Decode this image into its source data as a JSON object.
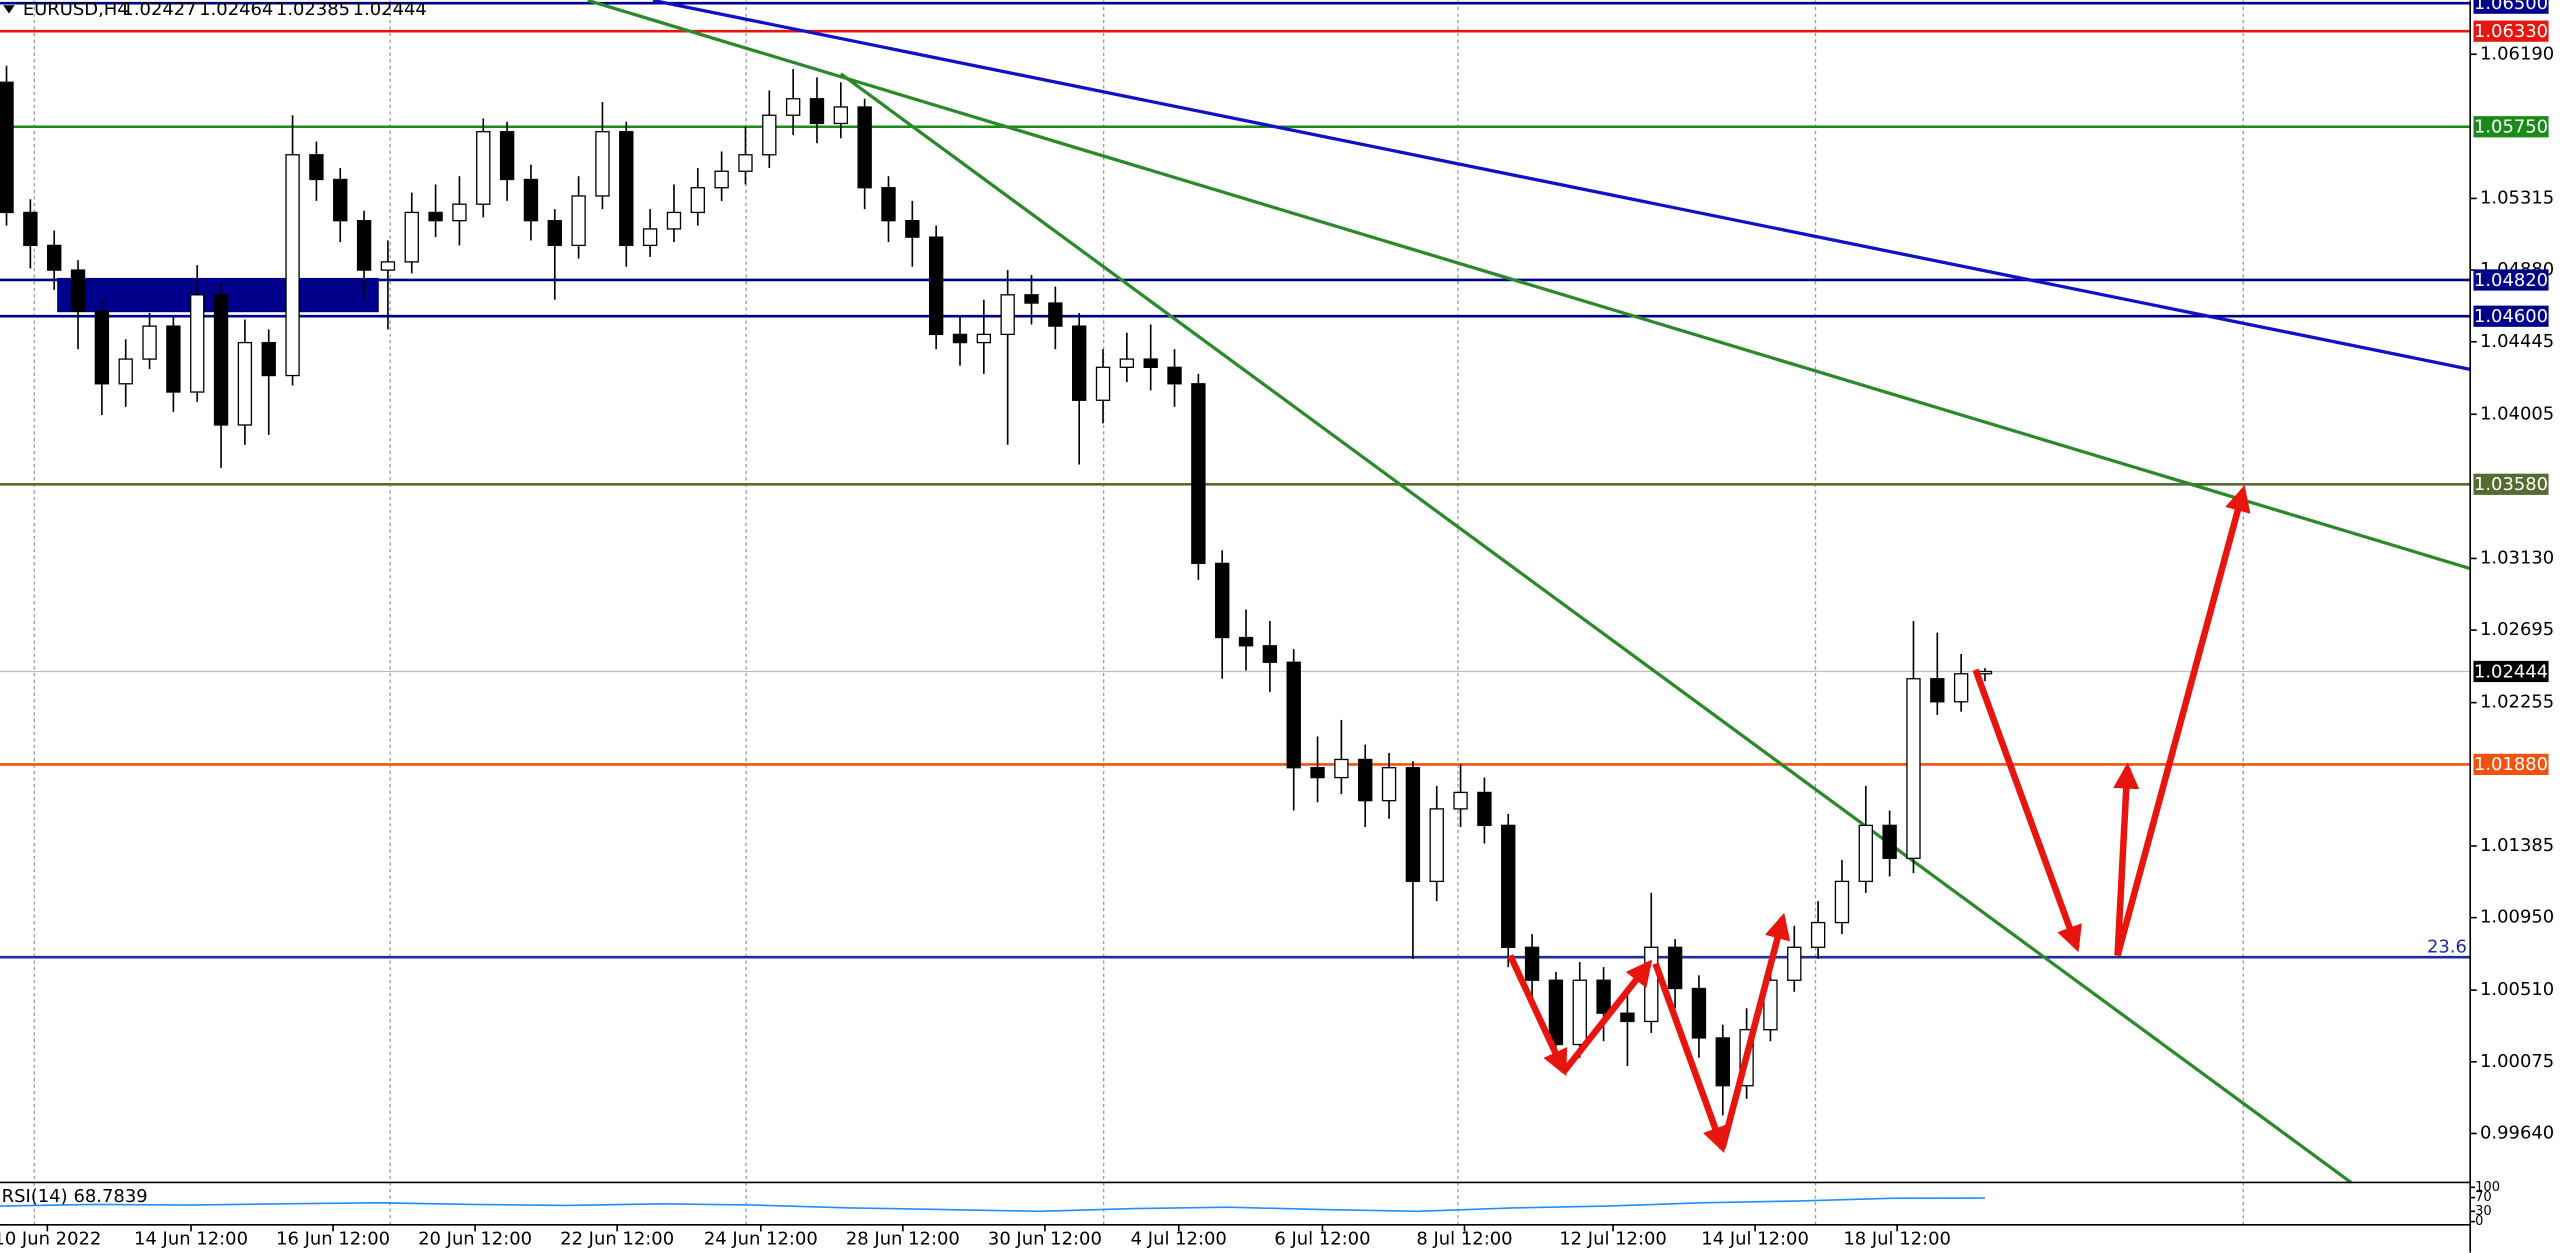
{
  "chart_data": {
    "type": "candlestick",
    "symbol": "EURUSD,H4",
    "header_ohlc": [
      1.02427,
      1.02464,
      1.02385,
      1.02444
    ],
    "ylim": [
      0.99343,
      1.06517
    ],
    "yticks": [
      {
        "value": 1.0619,
        "label": "1.06190"
      },
      {
        "value": 1.05315,
        "label": "1.05315"
      },
      {
        "value": 1.0488,
        "label": "1.04880"
      },
      {
        "value": 1.04445,
        "label": "1.04445"
      },
      {
        "value": 1.04005,
        "label": "1.04005"
      },
      {
        "value": 1.0313,
        "label": "1.03130"
      },
      {
        "value": 1.02695,
        "label": "1.02695"
      },
      {
        "value": 1.02255,
        "label": "1.02255"
      },
      {
        "value": 1.01385,
        "label": "1.01385"
      },
      {
        "value": 1.0095,
        "label": "1.00950"
      },
      {
        "value": 1.0051,
        "label": "1.00510"
      },
      {
        "value": 1.00075,
        "label": "1.00075"
      },
      {
        "value": 0.9964,
        "label": "0.99640"
      }
    ],
    "categories": [
      "10 Jun 2022",
      "14 Jun 12:00",
      "16 Jun 12:00",
      "20 Jun 12:00",
      "22 Jun 12:00",
      "24 Jun 12:00",
      "28 Jun 12:00",
      "30 Jun 12:00",
      "4 Jul 12:00",
      "6 Jul 12:00",
      "8 Jul 12:00",
      "12 Jul 12:00",
      "14 Jul 12:00",
      "18 Jul 12:00"
    ],
    "ohlc": [
      [
        1.0602,
        1.0612,
        1.0515,
        1.0523
      ],
      [
        1.0523,
        1.0531,
        1.0489,
        1.0503
      ],
      [
        1.0503,
        1.0512,
        1.0476,
        1.0488
      ],
      [
        1.0488,
        1.0494,
        1.044,
        1.0463
      ],
      [
        1.0463,
        1.047,
        1.04,
        1.0419
      ],
      [
        1.0419,
        1.0446,
        1.0405,
        1.0434
      ],
      [
        1.0434,
        1.0462,
        1.0428,
        1.0454
      ],
      [
        1.0454,
        1.046,
        1.0402,
        1.0414
      ],
      [
        1.0414,
        1.0491,
        1.0408,
        1.0473
      ],
      [
        1.0473,
        1.048,
        1.0368,
        1.0394
      ],
      [
        1.0394,
        1.0458,
        1.0382,
        1.0444
      ],
      [
        1.0444,
        1.0452,
        1.0388,
        1.0424
      ],
      [
        1.0424,
        1.0582,
        1.0418,
        1.0558
      ],
      [
        1.0558,
        1.0566,
        1.053,
        1.0543
      ],
      [
        1.0543,
        1.055,
        1.0505,
        1.0518
      ],
      [
        1.0518,
        1.0524,
        1.047,
        1.0488
      ],
      [
        1.0488,
        1.0506,
        1.0452,
        1.0493
      ],
      [
        1.0493,
        1.0535,
        1.0486,
        1.0523
      ],
      [
        1.0523,
        1.054,
        1.0508,
        1.0518
      ],
      [
        1.0518,
        1.0545,
        1.0503,
        1.0528
      ],
      [
        1.0528,
        1.058,
        1.052,
        1.0572
      ],
      [
        1.0572,
        1.0578,
        1.053,
        1.0543
      ],
      [
        1.0543,
        1.0552,
        1.0506,
        1.0518
      ],
      [
        1.0518,
        1.0525,
        1.047,
        1.0503
      ],
      [
        1.0503,
        1.0545,
        1.0495,
        1.0533
      ],
      [
        1.0533,
        1.059,
        1.0525,
        1.0572
      ],
      [
        1.0572,
        1.0578,
        1.049,
        1.0503
      ],
      [
        1.0503,
        1.0525,
        1.0496,
        1.0513
      ],
      [
        1.0513,
        1.054,
        1.0505,
        1.0523
      ],
      [
        1.0523,
        1.055,
        1.0515,
        1.0538
      ],
      [
        1.0538,
        1.056,
        1.053,
        1.0548
      ],
      [
        1.0548,
        1.0575,
        1.054,
        1.0558
      ],
      [
        1.0558,
        1.0597,
        1.055,
        1.0582
      ],
      [
        1.0582,
        1.061,
        1.057,
        1.0592
      ],
      [
        1.0592,
        1.0605,
        1.0565,
        1.0577
      ],
      [
        1.0577,
        1.0602,
        1.0568,
        1.0587
      ],
      [
        1.0587,
        1.0592,
        1.0525,
        1.0538
      ],
      [
        1.0538,
        1.0545,
        1.0505,
        1.0518
      ],
      [
        1.0518,
        1.053,
        1.049,
        1.0508
      ],
      [
        1.0508,
        1.0515,
        1.044,
        1.0449
      ],
      [
        1.0449,
        1.046,
        1.043,
        1.0444
      ],
      [
        1.0444,
        1.047,
        1.0425,
        1.0449
      ],
      [
        1.0449,
        1.0488,
        1.0382,
        1.0473
      ],
      [
        1.0473,
        1.0485,
        1.0455,
        1.0468
      ],
      [
        1.0468,
        1.0478,
        1.044,
        1.0454
      ],
      [
        1.0454,
        1.0462,
        1.037,
        1.0409
      ],
      [
        1.0409,
        1.044,
        1.0395,
        1.0429
      ],
      [
        1.0429,
        1.045,
        1.042,
        1.0434
      ],
      [
        1.0434,
        1.0455,
        1.0415,
        1.0429
      ],
      [
        1.0429,
        1.044,
        1.0405,
        1.0419
      ],
      [
        1.0419,
        1.0425,
        1.03,
        1.031
      ],
      [
        1.031,
        1.0318,
        1.024,
        1.0265
      ],
      [
        1.0265,
        1.0282,
        1.0245,
        1.026
      ],
      [
        1.026,
        1.0275,
        1.0232,
        1.025
      ],
      [
        1.025,
        1.0258,
        1.016,
        1.0186
      ],
      [
        1.0186,
        1.0205,
        1.0165,
        1.018
      ],
      [
        1.018,
        1.0215,
        1.017,
        1.0191
      ],
      [
        1.0191,
        1.02,
        1.015,
        1.0166
      ],
      [
        1.0166,
        1.0195,
        1.0155,
        1.0186
      ],
      [
        1.0186,
        1.019,
        1.007,
        1.0117
      ],
      [
        1.0117,
        1.0175,
        1.0105,
        1.0161
      ],
      [
        1.0161,
        1.0188,
        1.015,
        1.0171
      ],
      [
        1.0171,
        1.018,
        1.014,
        1.0151
      ],
      [
        1.0151,
        1.0158,
        1.0065,
        1.0077
      ],
      [
        1.0077,
        1.0085,
        1.004,
        1.0057
      ],
      [
        1.0057,
        1.0062,
        1.0005,
        1.0018
      ],
      [
        1.0018,
        1.0068,
        1.001,
        1.0057
      ],
      [
        1.0057,
        1.0065,
        1.002,
        1.0037
      ],
      [
        1.0037,
        1.005,
        1.0005,
        1.0032
      ],
      [
        1.0032,
        1.011,
        1.0025,
        1.0077
      ],
      [
        1.0077,
        1.0082,
        1.004,
        1.0052
      ],
      [
        1.0052,
        1.006,
        1.001,
        1.0022
      ],
      [
        1.0022,
        1.003,
        0.9975,
        0.9993
      ],
      [
        0.9993,
        1.004,
        0.9985,
        1.0027
      ],
      [
        1.0027,
        1.0065,
        1.002,
        1.0057
      ],
      [
        1.0057,
        1.009,
        1.005,
        1.0077
      ],
      [
        1.0077,
        1.0105,
        1.007,
        1.0092
      ],
      [
        1.0092,
        1.013,
        1.0085,
        1.0117
      ],
      [
        1.0117,
        1.0175,
        1.011,
        1.0151
      ],
      [
        1.0151,
        1.016,
        1.012,
        1.0131
      ],
      [
        1.0131,
        1.0275,
        1.0122,
        1.024
      ],
      [
        1.024,
        1.0268,
        1.0218,
        1.0226
      ],
      [
        1.0226,
        1.0255,
        1.022,
        1.0243
      ],
      [
        1.0243,
        1.02464,
        1.02385,
        1.02444
      ]
    ],
    "bull_color": "#ffffff",
    "bear_color": "#000000",
    "levels": [
      {
        "value": 1.065,
        "label": "1.06500",
        "color": "#00008b"
      },
      {
        "value": 1.0633,
        "label": "1.06330",
        "color": "#e8150e"
      },
      {
        "value": 1.0575,
        "label": "1.05750",
        "color": "#1a8a1a"
      },
      {
        "value": 1.0482,
        "label": "1.04820",
        "color": "#00008b"
      },
      {
        "value": 1.046,
        "label": "1.04600",
        "color": "#00008b"
      },
      {
        "value": 1.0358,
        "label": "1.03580",
        "color": "#556b2f"
      },
      {
        "value": 1.0188,
        "label": "1.01880",
        "color": "#f0520f"
      }
    ],
    "fib_level": {
      "price": 1.0071,
      "ratio": 23.6,
      "color": "#1f2d9c"
    },
    "last_price": 1.02444,
    "rsi": {
      "label": "RSI(14)",
      "value": 68.7839,
      "color": "#1e90ff",
      "ylim": [
        0,
        100
      ],
      "yticks": [
        0,
        30,
        70,
        100
      ],
      "values": [
        45,
        50,
        48,
        52,
        55,
        50,
        47,
        52,
        48,
        40,
        35,
        30,
        38,
        42,
        35,
        30,
        40,
        45,
        55,
        60,
        68,
        68.8
      ]
    }
  }
}
